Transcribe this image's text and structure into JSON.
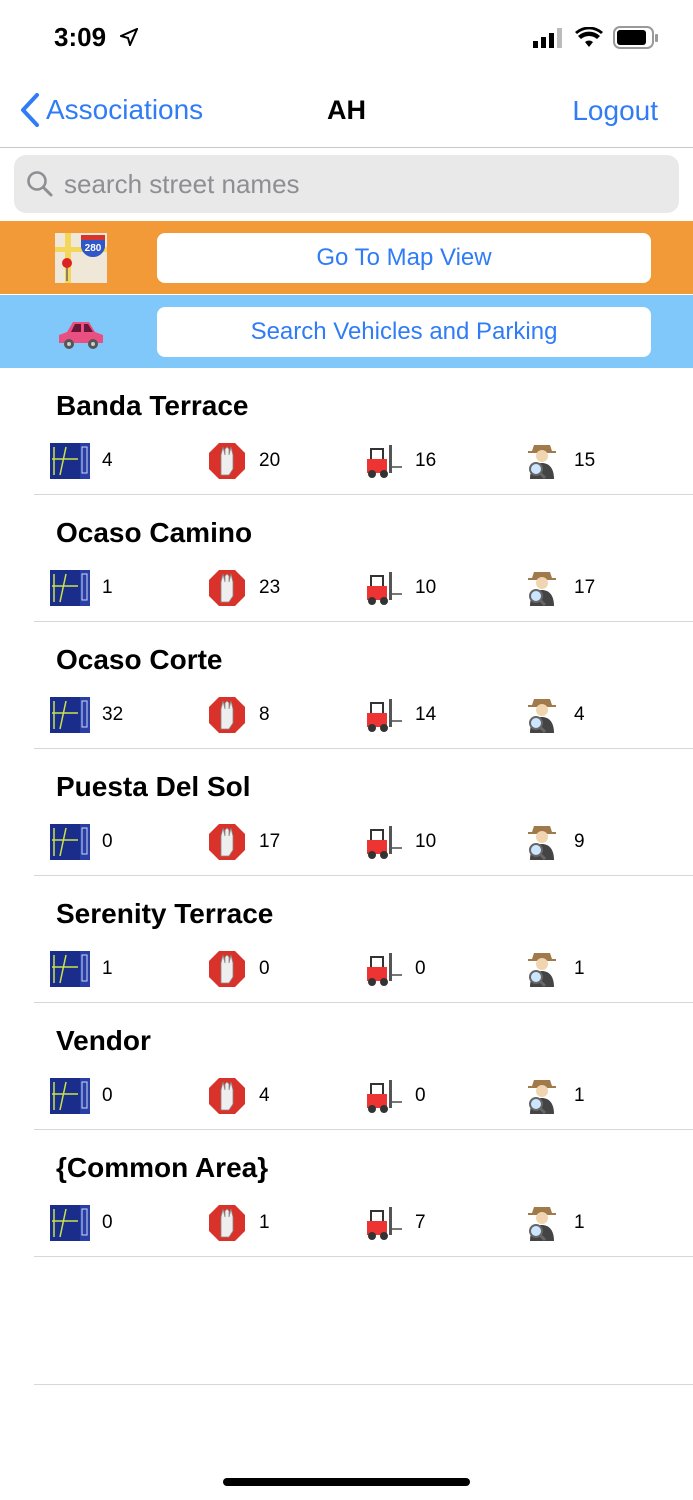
{
  "status_bar": {
    "time": "3:09"
  },
  "nav": {
    "back_label": "Associations",
    "title": "AH",
    "logout_label": "Logout"
  },
  "search": {
    "placeholder": "search street names",
    "value": ""
  },
  "map_button": {
    "label": "Go To Map View",
    "band_color": "#f29a38"
  },
  "vehicles_button": {
    "label": "Search Vehicles and Parking",
    "band_color": "#80c8fa"
  },
  "stat_icons": [
    "plan-icon",
    "stop-hand-icon",
    "forklift-icon",
    "inspector-icon"
  ],
  "streets": [
    {
      "name": "Banda Terrace",
      "stats": [
        "4",
        "20",
        "16",
        "15"
      ]
    },
    {
      "name": "Ocaso Camino",
      "stats": [
        "1",
        "23",
        "10",
        "17"
      ]
    },
    {
      "name": "Ocaso Corte",
      "stats": [
        "32",
        "8",
        "14",
        "4"
      ]
    },
    {
      "name": "Puesta Del Sol",
      "stats": [
        "0",
        "17",
        "10",
        "9"
      ]
    },
    {
      "name": "Serenity Terrace",
      "stats": [
        "1",
        "0",
        "0",
        "1"
      ]
    },
    {
      "name": "Vendor",
      "stats": [
        "0",
        "4",
        "0",
        "1"
      ]
    },
    {
      "name": "{Common Area}",
      "stats": [
        "0",
        "1",
        "7",
        "1"
      ]
    }
  ]
}
